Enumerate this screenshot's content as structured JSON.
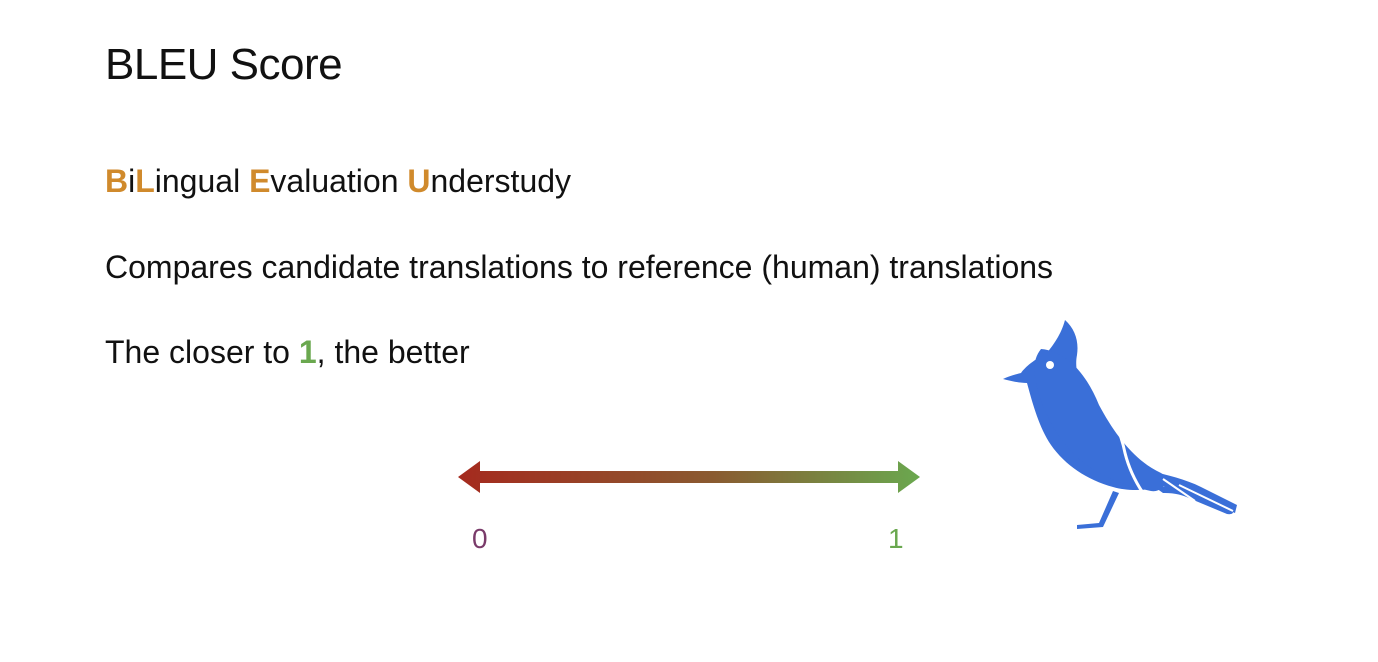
{
  "slide": {
    "title": "BLEU Score",
    "acronym": [
      {
        "text": "B",
        "highlight": true
      },
      {
        "text": "i",
        "highlight": false
      },
      {
        "text": "L",
        "highlight": true
      },
      {
        "text": "ingual ",
        "highlight": false
      },
      {
        "text": "E",
        "highlight": true
      },
      {
        "text": "valuation ",
        "highlight": false
      },
      {
        "text": "U",
        "highlight": true
      },
      {
        "text": "nderstudy",
        "highlight": false
      }
    ],
    "compares_text": "Compares candidate translations to reference (human) translations",
    "closer_prefix": "The closer to ",
    "closer_value": "1",
    "closer_suffix": ", the better"
  },
  "scale": {
    "min_label": "0",
    "max_label": "1",
    "gradient_start_color": "#a52a1e",
    "gradient_end_color": "#6aa84f"
  },
  "colors": {
    "acronym_highlight": "#d08a2c",
    "value_highlight": "#6aa84f",
    "bird": "#3a6fd8"
  },
  "icons": {
    "bird": "bluejay-bird-icon",
    "arrow": "double-headed-arrow-icon"
  }
}
